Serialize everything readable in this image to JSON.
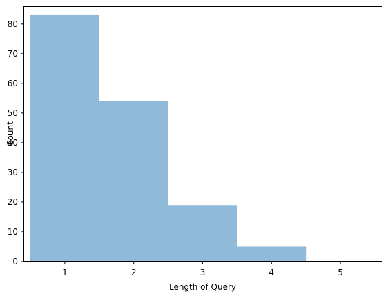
{
  "chart_data": {
    "type": "bar",
    "title": "",
    "xlabel": "Length of Query",
    "ylabel": "Count",
    "categories": [
      1,
      2,
      3,
      4,
      5
    ],
    "values": [
      83,
      54,
      19,
      5,
      0
    ],
    "bar_width": 1,
    "xlim": [
      0.4,
      5.6
    ],
    "ylim": [
      0,
      86
    ],
    "xticks": [
      1,
      2,
      3,
      4,
      5
    ],
    "yticks": [
      0,
      10,
      20,
      30,
      40,
      50,
      60,
      70,
      80
    ],
    "bar_color": "#8fbada",
    "grid": false,
    "legend": "none"
  }
}
